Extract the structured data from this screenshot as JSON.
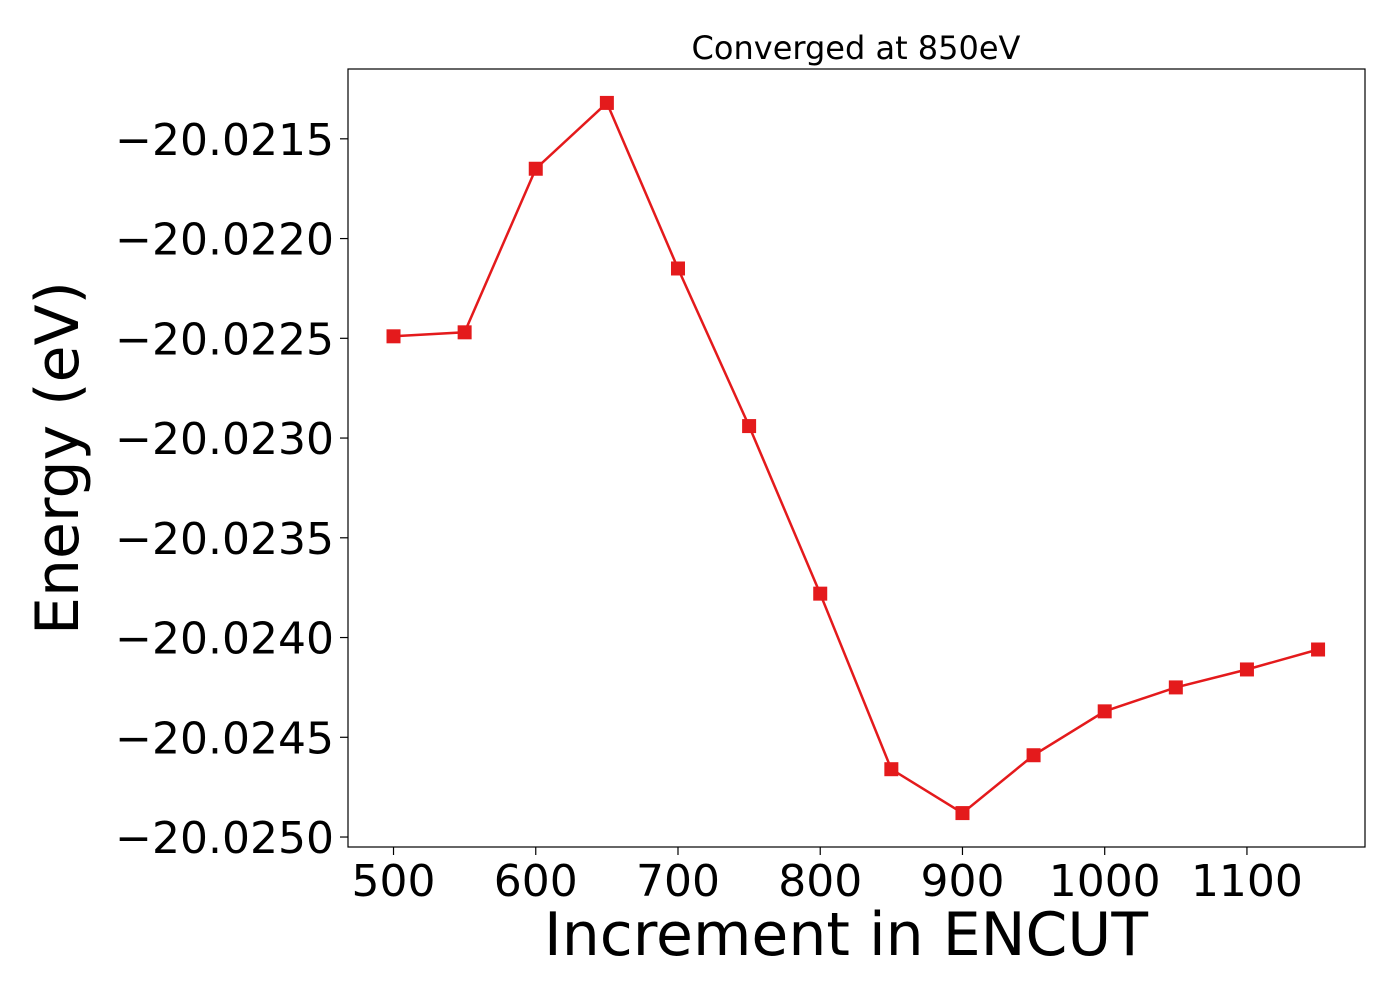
{
  "chart_data": {
    "type": "line",
    "title": "Converged at 850eV",
    "xlabel": "Increment in ENCUT",
    "ylabel": "Energy (eV)",
    "xlim": [
      468,
      1183
    ],
    "ylim": [
      -20.02505,
      -20.02115
    ],
    "x_ticks": [
      500,
      600,
      700,
      800,
      900,
      1000,
      1100
    ],
    "x_tick_labels": [
      "500",
      "600",
      "700",
      "800",
      "900",
      "1000",
      "1100"
    ],
    "y_ticks": [
      -20.0215,
      -20.022,
      -20.0225,
      -20.023,
      -20.0235,
      -20.024,
      -20.0245,
      -20.025
    ],
    "y_tick_labels": [
      "−20.0215",
      "−20.0220",
      "−20.0225",
      "−20.0230",
      "−20.0235",
      "−20.0240",
      "−20.0245",
      "−20.0250"
    ],
    "grid": false,
    "series": [
      {
        "color": "#e41a1c",
        "marker": "square",
        "x": [
          500,
          550,
          600,
          650,
          700,
          750,
          800,
          850,
          900,
          950,
          1000,
          1050,
          1100,
          1150
        ],
        "y": [
          -20.02249,
          -20.02247,
          -20.02165,
          -20.02132,
          -20.02215,
          -20.02294,
          -20.02378,
          -20.02466,
          -20.02488,
          -20.02459,
          -20.02437,
          -20.02425,
          -20.02416,
          -20.02406
        ]
      }
    ]
  }
}
